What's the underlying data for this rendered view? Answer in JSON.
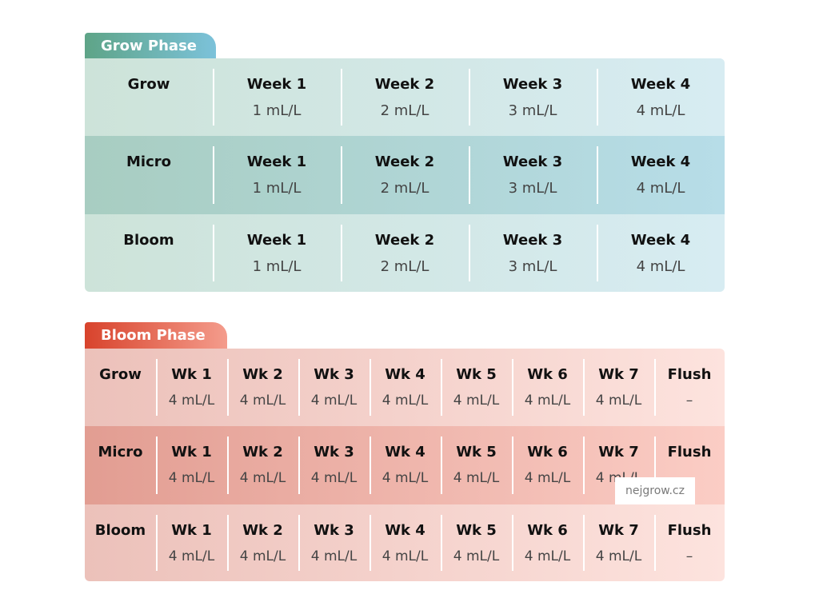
{
  "grow_phase": {
    "title": "Grow Phase",
    "rows": [
      {
        "label": "Grow",
        "cells": [
          {
            "head": "Week 1",
            "value": "1 mL/L"
          },
          {
            "head": "Week 2",
            "value": "2 mL/L"
          },
          {
            "head": "Week 3",
            "value": "3 mL/L"
          },
          {
            "head": "Week 4",
            "value": "4 mL/L"
          }
        ]
      },
      {
        "label": "Micro",
        "cells": [
          {
            "head": "Week 1",
            "value": "1 mL/L"
          },
          {
            "head": "Week 2",
            "value": "2 mL/L"
          },
          {
            "head": "Week 3",
            "value": "3 mL/L"
          },
          {
            "head": "Week 4",
            "value": "4 mL/L"
          }
        ]
      },
      {
        "label": "Bloom",
        "cells": [
          {
            "head": "Week 1",
            "value": "1 mL/L"
          },
          {
            "head": "Week 2",
            "value": "2 mL/L"
          },
          {
            "head": "Week 3",
            "value": "3 mL/L"
          },
          {
            "head": "Week 4",
            "value": "4 mL/L"
          }
        ]
      }
    ]
  },
  "bloom_phase": {
    "title": "Bloom Phase",
    "rows": [
      {
        "label": "Grow",
        "cells": [
          {
            "head": "Wk 1",
            "value": "4 mL/L"
          },
          {
            "head": "Wk 2",
            "value": "4 mL/L"
          },
          {
            "head": "Wk 3",
            "value": "4 mL/L"
          },
          {
            "head": "Wk 4",
            "value": "4 mL/L"
          },
          {
            "head": "Wk 5",
            "value": "4 mL/L"
          },
          {
            "head": "Wk 6",
            "value": "4 mL/L"
          },
          {
            "head": "Wk 7",
            "value": "4 mL/L"
          },
          {
            "head": "Flush",
            "value": "–"
          }
        ]
      },
      {
        "label": "Micro",
        "cells": [
          {
            "head": "Wk 1",
            "value": "4 mL/L"
          },
          {
            "head": "Wk 2",
            "value": "4 mL/L"
          },
          {
            "head": "Wk 3",
            "value": "4 mL/L"
          },
          {
            "head": "Wk 4",
            "value": "4 mL/L"
          },
          {
            "head": "Wk 5",
            "value": "4 mL/L"
          },
          {
            "head": "Wk 6",
            "value": "4 mL/L"
          },
          {
            "head": "Wk 7",
            "value": "4 mL/L"
          },
          {
            "head": "Flush",
            "value": ""
          }
        ]
      },
      {
        "label": "Bloom",
        "cells": [
          {
            "head": "Wk 1",
            "value": "4 mL/L"
          },
          {
            "head": "Wk 2",
            "value": "4 mL/L"
          },
          {
            "head": "Wk 3",
            "value": "4 mL/L"
          },
          {
            "head": "Wk 4",
            "value": "4 mL/L"
          },
          {
            "head": "Wk 5",
            "value": "4 mL/L"
          },
          {
            "head": "Wk 6",
            "value": "4 mL/L"
          },
          {
            "head": "Wk 7",
            "value": "4 mL/L"
          },
          {
            "head": "Flush",
            "value": "–"
          }
        ]
      }
    ]
  },
  "watermark": "nejgrow.cz"
}
